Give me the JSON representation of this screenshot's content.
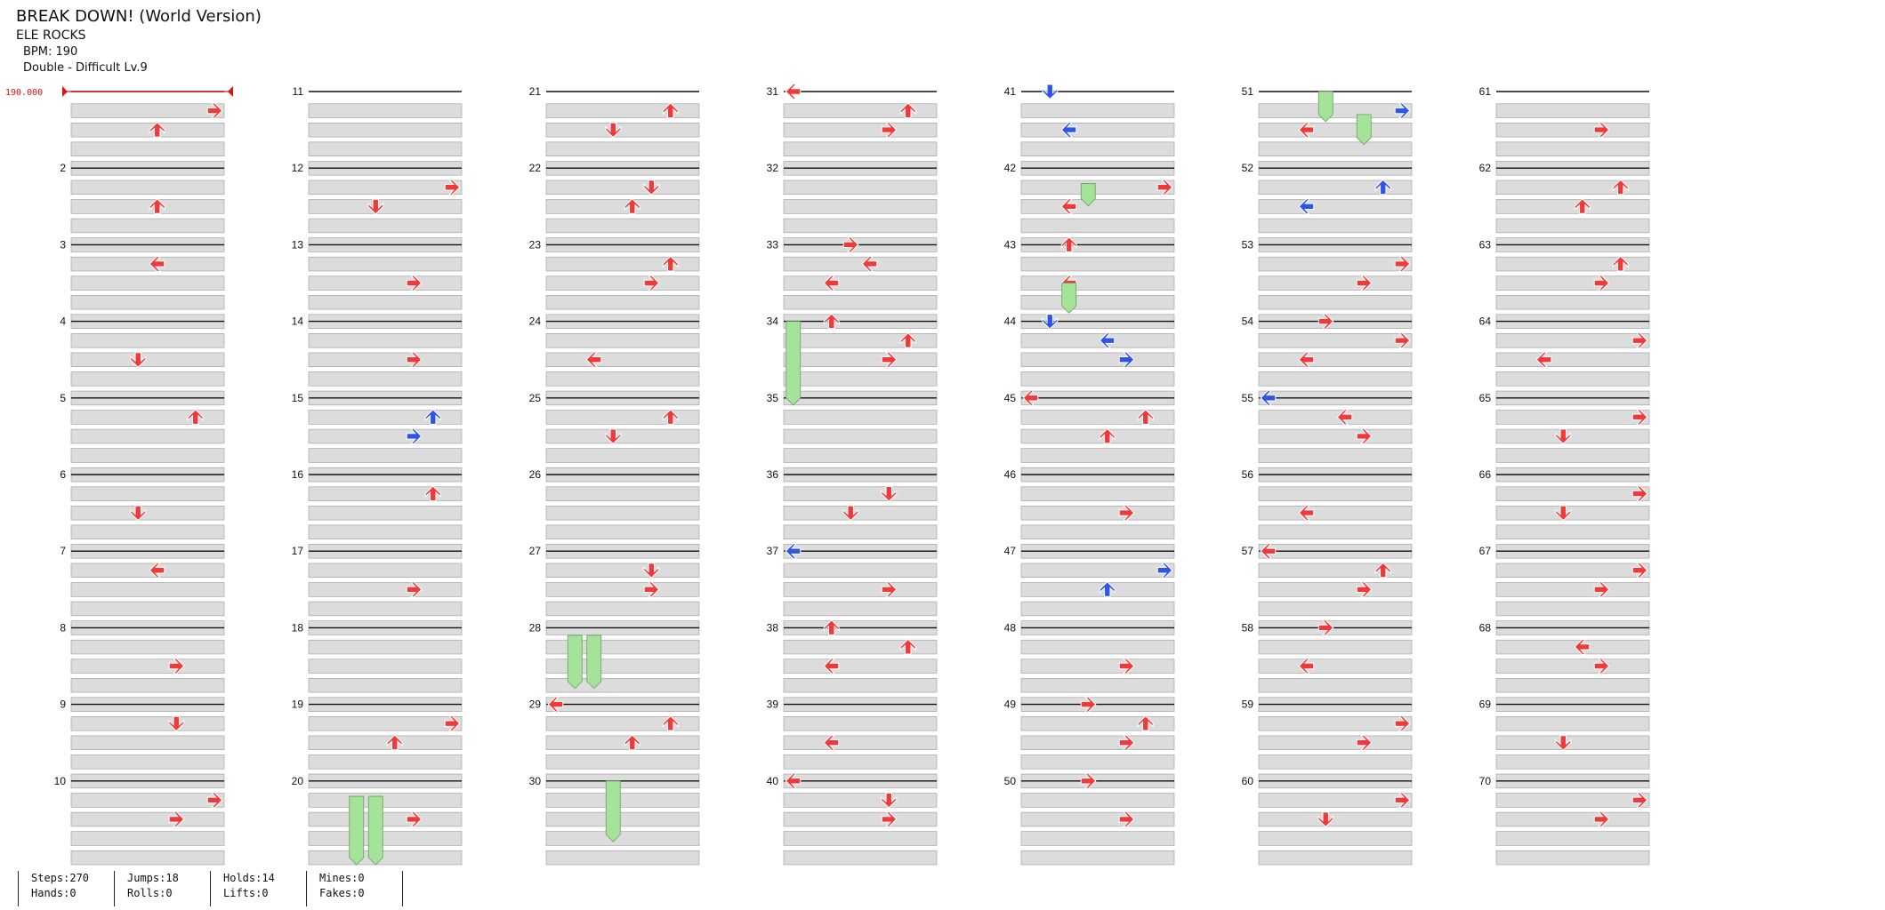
{
  "song": {
    "title": "BREAK DOWN! (World Version)",
    "artist": "ELE ROCKS",
    "bpm_text": "BPM: 190",
    "difficulty_text": "Double - Difficult Lv.9",
    "bpm_marker": "190.000"
  },
  "chart": {
    "measure_labels": [
      "2",
      "3",
      "4",
      "5",
      "6",
      "7",
      "8",
      "9",
      "10",
      "11",
      "12",
      "13",
      "14",
      "15",
      "16",
      "17",
      "18",
      "19",
      "20",
      "21",
      "22",
      "23",
      "24",
      "25",
      "26",
      "27",
      "28",
      "29",
      "30",
      "31",
      "32",
      "33",
      "34",
      "35",
      "36",
      "37",
      "38",
      "39",
      "40",
      "41",
      "42",
      "43",
      "44",
      "45",
      "46",
      "47",
      "48",
      "49",
      "50",
      "51",
      "52",
      "53",
      "54",
      "55",
      "56",
      "57",
      "58",
      "59",
      "60",
      "61",
      "62",
      "63",
      "64",
      "65",
      "66",
      "67",
      "68",
      "69",
      "70"
    ],
    "colors": {
      "quarter": "#ee3a3a",
      "eighth": "#2f55e4",
      "hold": "#a6e39a",
      "bpm": "#e01010",
      "beat_band": "#dcdcdc"
    },
    "columns": [
      [
        "",
        "",
        "",
        "",
        "",
        "",
        "",
        "",
        "",
        "",
        "",
        "",
        "",
        "",
        "",
        "",
        "",
        "",
        "",
        "",
        "",
        "",
        "",
        "",
        "",
        "",
        "",
        "",
        "r:l",
        "",
        "r:l",
        "",
        "r:r",
        "r:u",
        "",
        "",
        "b:l",
        "r:u",
        "",
        "r:l",
        "b:d",
        "",
        "r:u",
        "b:d",
        "r:l",
        "",
        "",
        "",
        "r:r",
        "r:r",
        "",
        "",
        "",
        "r:r",
        "b:l",
        "",
        "r:l",
        "r:r"
      ],
      [
        "r:u",
        "r:u",
        "",
        "r:d",
        "",
        "r:d",
        "",
        "r:r",
        "",
        "r:r",
        "",
        "r:d",
        "r:r",
        "r:r",
        "b:r",
        "",
        "r:r",
        "",
        "r:u",
        "r:r",
        "r:d",
        "r:u",
        "r:r",
        "r:l",
        "r:d",
        "",
        "r:r",
        "b:l",
        "r:u",
        "",
        "r:r",
        "",
        "r:l",
        "r:r",
        "",
        "r:d",
        "r:r",
        "r:l",
        "r:l",
        "r:r",
        "b:l",
        "r:l",
        "r:l",
        "b:r",
        "r:u",
        "r:r",
        "b:u",
        "r:r",
        "r:r",
        "r:r",
        "r:l",
        "b:l",
        "r:r",
        "r:l",
        "r:r",
        "r:l",
        "r:r",
        "r:l",
        "r:r",
        "r:d",
        "r:r",
        "r:u",
        "r:r",
        "r:l",
        "r:d",
        "r:d",
        "r:r",
        "r:r",
        "r:d",
        "r:r"
      ],
      [
        "r:r",
        "",
        "r:l",
        "",
        "r:u",
        "",
        "r:l",
        "",
        "r:d",
        "r:r",
        "",
        "r:r",
        "",
        "",
        "b:u",
        "r:u",
        "",
        "",
        "r:r",
        "",
        "r:u",
        "r:d",
        "r:u",
        "",
        "r:u",
        "",
        "r:d",
        "",
        "r:u",
        "",
        "r:u",
        "",
        "r:l",
        "r:u",
        "",
        "r:d",
        "",
        "r:u",
        "",
        "r:d",
        "",
        "r:r",
        "",
        "b:l",
        "r:u",
        "",
        "b:r",
        "",
        "r:u",
        "",
        "b:r",
        "b:u",
        "r:r",
        "r:r",
        "r:l",
        "",
        "r:u",
        "",
        "r:r",
        "r:r",
        "",
        "r:u",
        "r:u",
        "r:r",
        "r:r",
        "r:r",
        "r:r",
        "r:l",
        "",
        "r:r"
      ]
    ]
  },
  "stats": {
    "steps": "Steps:270",
    "hands": "Hands:0",
    "jumps": "Jumps:18",
    "rolls": "Rolls:0",
    "holds": "Holds:14",
    "lifts": "Lifts:0",
    "mines": "Mines:0",
    "fakes": "Fakes:0"
  }
}
